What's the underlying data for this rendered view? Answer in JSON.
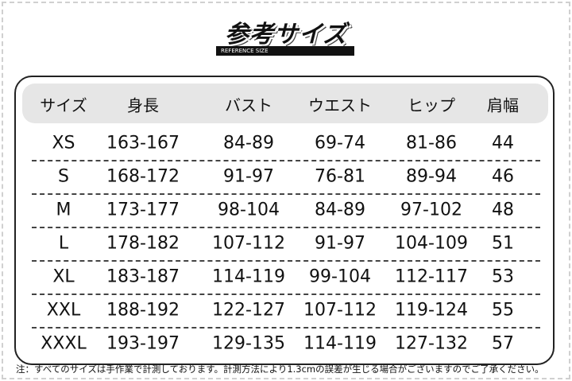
{
  "header": {
    "title": "参考サイズ",
    "subtitle": "REFERENCE SIZE"
  },
  "table": {
    "columns": [
      "サイズ",
      "身長",
      "バスト",
      "ウエスト",
      "ヒップ",
      "肩幅"
    ],
    "rows": [
      [
        "XS",
        "163-167",
        "84-89",
        "69-74",
        "81-86",
        44
      ],
      [
        "S",
        "168-172",
        "91-97",
        "76-81",
        "89-94",
        46
      ],
      [
        "M",
        "173-177",
        "98-104",
        "84-89",
        "97-102",
        48
      ],
      [
        "L",
        "178-182",
        "107-112",
        "91-97",
        "104-109",
        51
      ],
      [
        "XL",
        "183-187",
        "114-119",
        "99-104",
        "112-117",
        53
      ],
      [
        "XXL",
        "188-192",
        "122-127",
        "107-112",
        "119-124",
        55
      ],
      [
        "XXXL",
        "193-197",
        "129-135",
        "114-119",
        "127-132",
        57
      ]
    ]
  },
  "footnote": "注：すべてのサイズは手作業で計測しております。計測方法により1.3cmの誤差が生じる場合がございますのでご了承ください。"
}
